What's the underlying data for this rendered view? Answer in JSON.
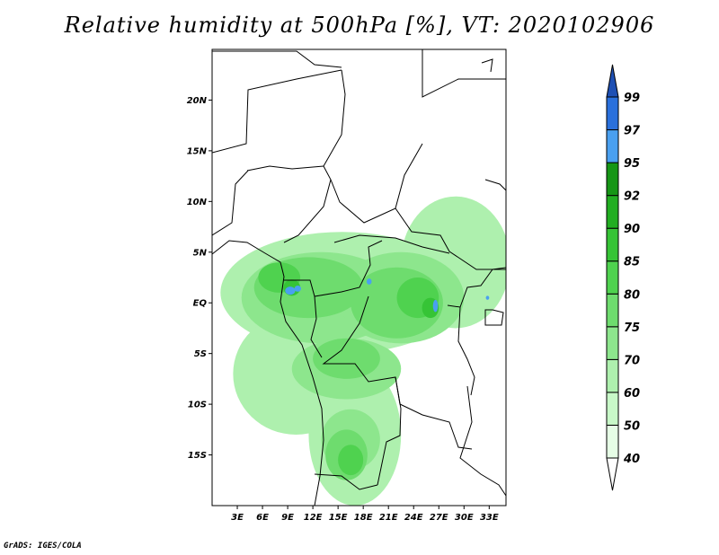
{
  "title": "Relative humidity at 500hPa [%], VT: 2020102906",
  "credit": "GrADS: IGES/COLA",
  "map": {
    "lon_range": [
      0,
      35
    ],
    "lat_range": [
      -20,
      25
    ],
    "lat_ticks": [
      {
        "lat": 20,
        "label": "20N"
      },
      {
        "lat": 15,
        "label": "15N"
      },
      {
        "lat": 10,
        "label": "10N"
      },
      {
        "lat": 5,
        "label": "5N"
      },
      {
        "lat": 0,
        "label": "EQ"
      },
      {
        "lat": -5,
        "label": "5S"
      },
      {
        "lat": -10,
        "label": "10S"
      },
      {
        "lat": -15,
        "label": "15S"
      }
    ],
    "lon_ticks": [
      {
        "lon": 3,
        "label": "3E"
      },
      {
        "lon": 6,
        "label": "6E"
      },
      {
        "lon": 9,
        "label": "9E"
      },
      {
        "lon": 12,
        "label": "12E"
      },
      {
        "lon": 15,
        "label": "15E"
      },
      {
        "lon": 18,
        "label": "18E"
      },
      {
        "lon": 21,
        "label": "21E"
      },
      {
        "lon": 24,
        "label": "24E"
      },
      {
        "lon": 27,
        "label": "27E"
      },
      {
        "lon": 30,
        "label": "30E"
      },
      {
        "lon": 33,
        "label": "33E"
      }
    ]
  },
  "colorbar": {
    "levels": [
      "40",
      "50",
      "60",
      "70",
      "75",
      "80",
      "85",
      "90",
      "92",
      "95",
      "97",
      "99"
    ],
    "colors": [
      "#ffffff",
      "#e6fde6",
      "#c8f8c8",
      "#aef0ae",
      "#8de68d",
      "#6edc6e",
      "#4fd24f",
      "#36c436",
      "#22ae22",
      "#169616",
      "#4aa0f0",
      "#2a70dc",
      "#1e50b4"
    ]
  },
  "humidity_regions": [
    {
      "level": 3,
      "lon": 15.5,
      "lat": 1.0,
      "rlon": 14.5,
      "rlat": 6.0
    },
    {
      "level": 3,
      "lon": 10.0,
      "lat": -7.0,
      "rlon": 7.5,
      "rlat": 6.0
    },
    {
      "level": 3,
      "lon": 17.0,
      "lat": -13.0,
      "rlon": 5.5,
      "rlat": 7.0
    },
    {
      "level": 3,
      "lon": 29.0,
      "lat": 4.0,
      "rlon": 6.5,
      "rlat": 6.5
    },
    {
      "level": 4,
      "lon": 13.0,
      "lat": 0.5,
      "rlon": 9.5,
      "rlat": 4.5
    },
    {
      "level": 4,
      "lon": 22.5,
      "lat": 0.5,
      "rlon": 7.5,
      "rlat": 4.5
    },
    {
      "level": 4,
      "lon": 16.0,
      "lat": -6.5,
      "rlon": 6.5,
      "rlat": 3.0
    },
    {
      "level": 4,
      "lon": 16.5,
      "lat": -13.5,
      "rlon": 3.5,
      "rlat": 3.0
    },
    {
      "level": 5,
      "lon": 11.5,
      "lat": 1.5,
      "rlon": 6.5,
      "rlat": 3.0
    },
    {
      "level": 5,
      "lon": 22.0,
      "lat": 0.0,
      "rlon": 5.5,
      "rlat": 3.5
    },
    {
      "level": 5,
      "lon": 16.0,
      "lat": -5.5,
      "rlon": 4.0,
      "rlat": 2.0
    },
    {
      "level": 5,
      "lon": 16.0,
      "lat": -15.0,
      "rlon": 2.5,
      "rlat": 2.5
    },
    {
      "level": 6,
      "lon": 8.0,
      "lat": 2.5,
      "rlon": 2.5,
      "rlat": 1.5
    },
    {
      "level": 6,
      "lon": 24.5,
      "lat": 0.5,
      "rlon": 2.5,
      "rlat": 2.0
    },
    {
      "level": 6,
      "lon": 16.5,
      "lat": -15.5,
      "rlon": 1.5,
      "rlat": 1.5
    },
    {
      "level": 7,
      "lon": 9.5,
      "lat": 1.5,
      "rlon": 1.0,
      "rlat": 0.8
    },
    {
      "level": 7,
      "lon": 26.0,
      "lat": -0.5,
      "rlon": 1.0,
      "rlat": 1.0
    }
  ],
  "high_spots": [
    {
      "level": 10,
      "lon": 9.3,
      "lat": 1.2,
      "rlon": 0.6,
      "rlat": 0.4
    },
    {
      "level": 10,
      "lon": 10.2,
      "lat": 1.4,
      "rlon": 0.4,
      "rlat": 0.3
    },
    {
      "level": 10,
      "lon": 18.7,
      "lat": 2.1,
      "rlon": 0.3,
      "rlat": 0.3
    },
    {
      "level": 10,
      "lon": 26.6,
      "lat": -0.3,
      "rlon": 0.3,
      "rlat": 0.6
    },
    {
      "level": 10,
      "lon": 32.8,
      "lat": 0.5,
      "rlon": 0.2,
      "rlat": 0.2
    }
  ]
}
